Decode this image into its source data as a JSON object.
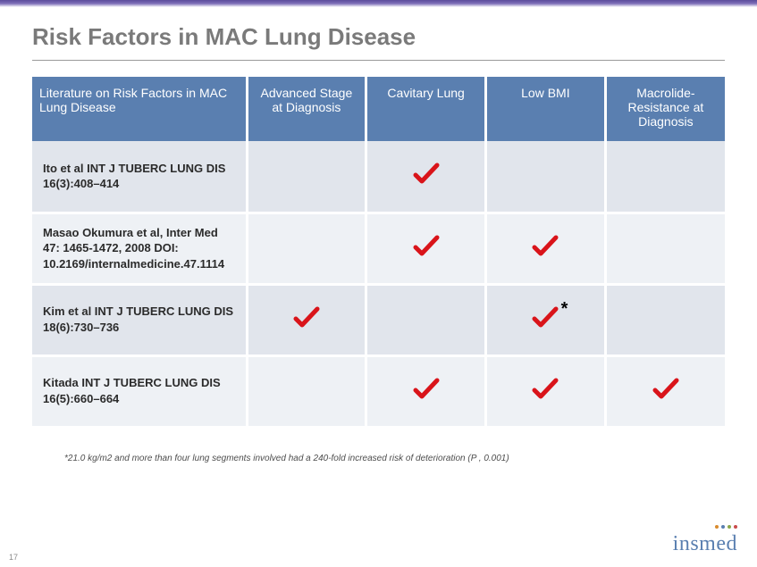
{
  "title": "Risk Factors in MAC Lung Disease",
  "table": {
    "type": "table",
    "header_bg": "#5a7fb0",
    "header_color": "#ffffff",
    "row_bg": "#e1e5ec",
    "row_alt_bg": "#eef1f5",
    "check_color": "#d9141a",
    "columns": [
      "Literature on Risk Factors in MAC Lung Disease",
      "Advanced Stage at Diagnosis",
      "Cavitary Lung",
      "Low BMI",
      "Macrolide-Resistance at Diagnosis"
    ],
    "rows": [
      {
        "label": "Ito et al INT J TUBERC LUNG DIS 16(3):408–414",
        "marks": [
          null,
          "check",
          null,
          null
        ]
      },
      {
        "label": "Masao Okumura et al, Inter Med 47: 1465-1472, 2008 DOI: 10.2169/internalmedicine.47.1114",
        "marks": [
          null,
          "check",
          "check",
          null
        ]
      },
      {
        "label": "Kim et al INT J TUBERC LUNG DIS 18(6):730–736",
        "marks": [
          "check",
          null,
          "check*",
          null
        ]
      },
      {
        "label": "Kitada INT J TUBERC LUNG DIS 16(5):660–664",
        "marks": [
          null,
          "check",
          "check",
          "check"
        ]
      }
    ]
  },
  "footnote": "*21.0 kg/m2 and more than four lung segments involved had a 240-fold increased risk of deterioration (P , 0.001)",
  "page_number": "17",
  "logo": {
    "text": "insmed",
    "color": "#5a7fb0",
    "dot_colors": [
      "#d98b2e",
      "#5a7fb0",
      "#8aa84b",
      "#c94b4b"
    ]
  }
}
